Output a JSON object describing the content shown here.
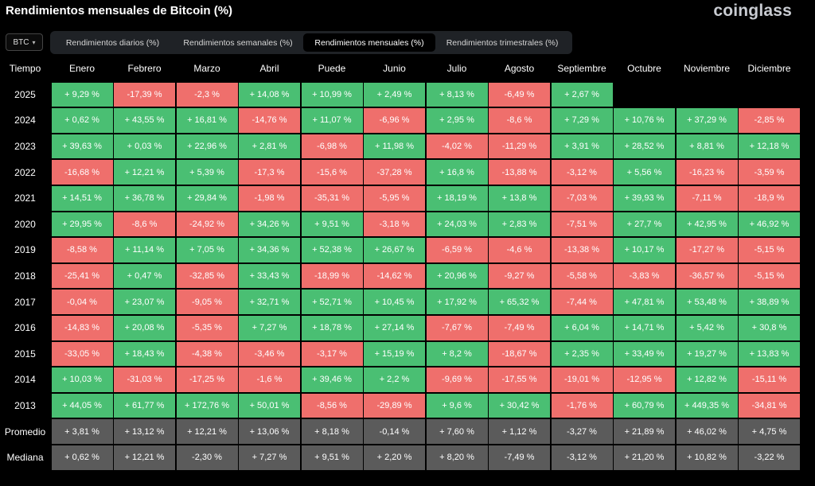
{
  "header": {
    "title": "Rendimientos mensuales de Bitcoin (%)",
    "logo": "coinglass"
  },
  "coin_select": {
    "value": "BTC",
    "icon": "chevron-down-icon"
  },
  "tabs": [
    {
      "label": "Rendimientos diarios (%)",
      "active": false
    },
    {
      "label": "Rendimientos semanales (%)",
      "active": false
    },
    {
      "label": "Rendimientos mensuales (%)",
      "active": true
    },
    {
      "label": "Rendimientos trimestrales (%)",
      "active": false
    }
  ],
  "colors": {
    "positive": "#4abf73",
    "negative": "#ef6f6c",
    "stat": "#5b5b5b",
    "tab_bar": "#1f2226"
  },
  "table": {
    "corner": "Tiempo",
    "columns": [
      "Enero",
      "Febrero",
      "Marzo",
      "Abril",
      "Puede",
      "Junio",
      "Julio",
      "Agosto",
      "Septiembre",
      "Octubre",
      "Noviembre",
      "Diciembre"
    ],
    "rows": [
      {
        "label": "2025",
        "values": [
          "+ 9,29 %",
          "-17,39 %",
          "-2,3 %",
          "+ 14,08 %",
          "+ 10,99 %",
          "+ 2,49 %",
          "+ 8,13 %",
          "-6,49 %",
          "+ 2,67 %",
          "",
          "",
          ""
        ]
      },
      {
        "label": "2024",
        "values": [
          "+ 0,62 %",
          "+ 43,55 %",
          "+ 16,81 %",
          "-14,76 %",
          "+ 11,07 %",
          "-6,96 %",
          "+ 2,95 %",
          "-8,6 %",
          "+ 7,29 %",
          "+ 10,76 %",
          "+ 37,29 %",
          "-2,85 %"
        ]
      },
      {
        "label": "2023",
        "values": [
          "+ 39,63 %",
          "+ 0,03 %",
          "+ 22,96 %",
          "+ 2,81 %",
          "-6,98 %",
          "+ 11,98 %",
          "-4,02 %",
          "-11,29 %",
          "+ 3,91 %",
          "+ 28,52 %",
          "+ 8,81 %",
          "+ 12,18 %"
        ]
      },
      {
        "label": "2022",
        "values": [
          "-16,68 %",
          "+ 12,21 %",
          "+ 5,39 %",
          "-17,3 %",
          "-15,6 %",
          "-37,28 %",
          "+ 16,8 %",
          "-13,88 %",
          "-3,12 %",
          "+ 5,56 %",
          "-16,23 %",
          "-3,59 %"
        ]
      },
      {
        "label": "2021",
        "values": [
          "+ 14,51 %",
          "+ 36,78 %",
          "+ 29,84 %",
          "-1,98 %",
          "-35,31 %",
          "-5,95 %",
          "+ 18,19 %",
          "+ 13,8 %",
          "-7,03 %",
          "+ 39,93 %",
          "-7,11 %",
          "-18,9 %"
        ]
      },
      {
        "label": "2020",
        "values": [
          "+ 29,95 %",
          "-8,6 %",
          "-24,92 %",
          "+ 34,26 %",
          "+ 9,51 %",
          "-3,18 %",
          "+ 24,03 %",
          "+ 2,83 %",
          "-7,51 %",
          "+ 27,7 %",
          "+ 42,95 %",
          "+ 46,92 %"
        ]
      },
      {
        "label": "2019",
        "values": [
          "-8,58 %",
          "+ 11,14 %",
          "+ 7,05 %",
          "+ 34,36 %",
          "+ 52,38 %",
          "+ 26,67 %",
          "-6,59 %",
          "-4,6 %",
          "-13,38 %",
          "+ 10,17 %",
          "-17,27 %",
          "-5,15 %"
        ]
      },
      {
        "label": "2018",
        "values": [
          "-25,41 %",
          "+ 0,47 %",
          "-32,85 %",
          "+ 33,43 %",
          "-18,99 %",
          "-14,62 %",
          "+ 20,96 %",
          "-9,27 %",
          "-5,58 %",
          "-3,83 %",
          "-36,57 %",
          "-5,15 %"
        ]
      },
      {
        "label": "2017",
        "values": [
          "-0,04 %",
          "+ 23,07 %",
          "-9,05 %",
          "+ 32,71 %",
          "+ 52,71 %",
          "+ 10,45 %",
          "+ 17,92 %",
          "+ 65,32 %",
          "-7,44 %",
          "+ 47,81 %",
          "+ 53,48 %",
          "+ 38,89 %"
        ]
      },
      {
        "label": "2016",
        "values": [
          "-14,83 %",
          "+ 20,08 %",
          "-5,35 %",
          "+ 7,27 %",
          "+ 18,78 %",
          "+ 27,14 %",
          "-7,67 %",
          "-7,49 %",
          "+ 6,04 %",
          "+ 14,71 %",
          "+ 5,42 %",
          "+ 30,8 %"
        ]
      },
      {
        "label": "2015",
        "values": [
          "-33,05 %",
          "+ 18,43 %",
          "-4,38 %",
          "-3,46 %",
          "-3,17 %",
          "+ 15,19 %",
          "+ 8,2 %",
          "-18,67 %",
          "+ 2,35 %",
          "+ 33,49 %",
          "+ 19,27 %",
          "+ 13,83 %"
        ]
      },
      {
        "label": "2014",
        "values": [
          "+ 10,03 %",
          "-31,03 %",
          "-17,25 %",
          "-1,6 %",
          "+ 39,46 %",
          "+ 2,2 %",
          "-9,69 %",
          "-17,55 %",
          "-19,01 %",
          "-12,95 %",
          "+ 12,82 %",
          "-15,11 %"
        ]
      },
      {
        "label": "2013",
        "values": [
          "+ 44,05 %",
          "+ 61,77 %",
          "+ 172,76 %",
          "+ 50,01 %",
          "-8,56 %",
          "-29,89 %",
          "+ 9,6 %",
          "+ 30,42 %",
          "-1,76 %",
          "+ 60,79 %",
          "+ 449,35 %",
          "-34,81 %"
        ]
      }
    ],
    "stats": [
      {
        "label": "Promedio",
        "values": [
          "+ 3,81 %",
          "+ 13,12 %",
          "+ 12,21 %",
          "+ 13,06 %",
          "+ 8,18 %",
          "-0,14 %",
          "+ 7,60 %",
          "+ 1,12 %",
          "-3,27 %",
          "+ 21,89 %",
          "+ 46,02 %",
          "+ 4,75 %"
        ]
      },
      {
        "label": "Mediana",
        "values": [
          "+ 0,62 %",
          "+ 12,21 %",
          "-2,30 %",
          "+ 7,27 %",
          "+ 9,51 %",
          "+ 2,20 %",
          "+ 8,20 %",
          "-7,49 %",
          "-3,12 %",
          "+ 21,20 %",
          "+ 10,82 %",
          "-3,22 %"
        ]
      }
    ]
  }
}
